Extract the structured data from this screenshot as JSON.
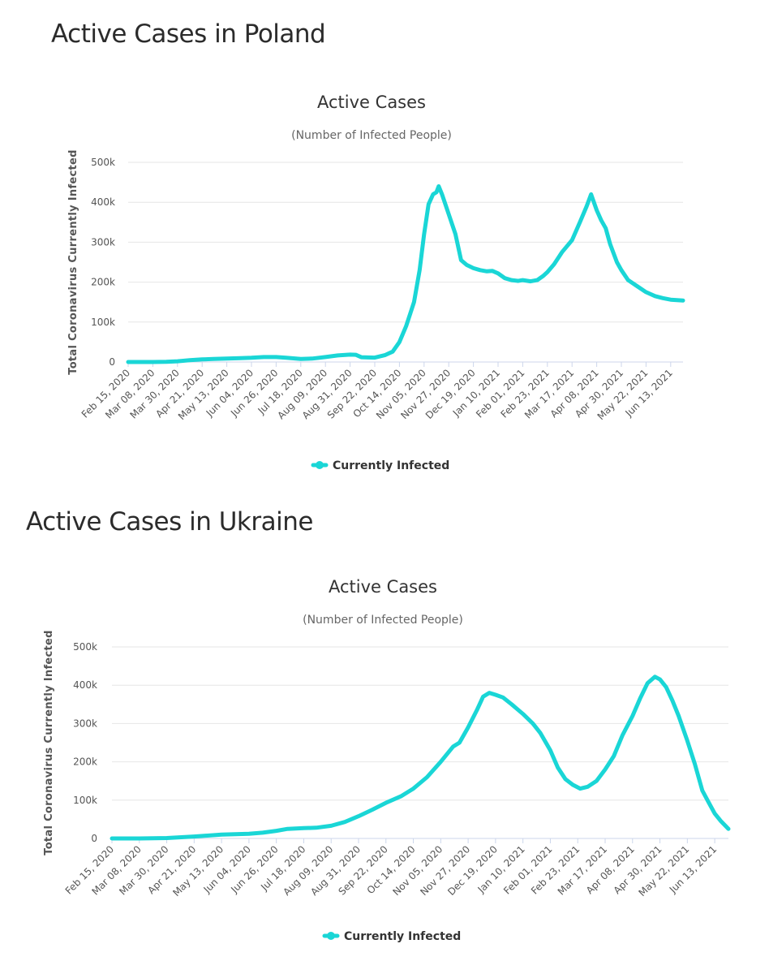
{
  "sections": [
    {
      "heading": "Active Cases in Poland",
      "chart_data": {
        "type": "line",
        "title": "Active Cases",
        "subtitle": "(Number of Infected People)",
        "ylabel": "Total Coronavirus Currently Infected",
        "ylim": [
          0,
          500000
        ],
        "y_ticks": [
          "0",
          "100k",
          "200k",
          "300k",
          "400k",
          "500k"
        ],
        "x_ticks": [
          "Feb 15, 2020",
          "Mar 08, 2020",
          "Mar 30, 2020",
          "Apr 21, 2020",
          "May 13, 2020",
          "Jun 04, 2020",
          "Jun 26, 2020",
          "Jul 18, 2020",
          "Aug 09, 2020",
          "Aug 31, 2020",
          "Sep 22, 2020",
          "Oct 14, 2020",
          "Nov 05, 2020",
          "Nov 27, 2020",
          "Dec 19, 2020",
          "Jan 10, 2021",
          "Feb 01, 2021",
          "Feb 23, 2021",
          "Mar 17, 2021",
          "Apr 08, 2021",
          "Apr 30, 2021",
          "May 22, 2021",
          "Jun 13, 2021"
        ],
        "x_range": [
          "2020-02-15",
          "2021-06-24"
        ],
        "legend": "bottom",
        "color": "#1ad6d6",
        "series": [
          {
            "name": "Currently Infected",
            "points": [
              [
                "2020-02-15",
                0
              ],
              [
                "2020-03-08",
                50
              ],
              [
                "2020-03-20",
                400
              ],
              [
                "2020-03-30",
                1800
              ],
              [
                "2020-04-10",
                4500
              ],
              [
                "2020-04-21",
                6500
              ],
              [
                "2020-05-01",
                7500
              ],
              [
                "2020-05-13",
                8500
              ],
              [
                "2020-05-25",
                9500
              ],
              [
                "2020-06-04",
                10500
              ],
              [
                "2020-06-15",
                12500
              ],
              [
                "2020-06-26",
                12500
              ],
              [
                "2020-07-05",
                10500
              ],
              [
                "2020-07-18",
                7500
              ],
              [
                "2020-07-28",
                8500
              ],
              [
                "2020-08-09",
                12500
              ],
              [
                "2020-08-20",
                16500
              ],
              [
                "2020-08-31",
                18500
              ],
              [
                "2020-09-05",
                18000
              ],
              [
                "2020-09-10",
                12000
              ],
              [
                "2020-09-22",
                11000
              ],
              [
                "2020-10-01",
                17000
              ],
              [
                "2020-10-08",
                26000
              ],
              [
                "2020-10-14",
                50000
              ],
              [
                "2020-10-20",
                90000
              ],
              [
                "2020-10-27",
                150000
              ],
              [
                "2020-11-01",
                230000
              ],
              [
                "2020-11-05",
                320000
              ],
              [
                "2020-11-09",
                395000
              ],
              [
                "2020-11-13",
                420000
              ],
              [
                "2020-11-16",
                425000
              ],
              [
                "2020-11-18",
                440000
              ],
              [
                "2020-11-21",
                420000
              ],
              [
                "2020-11-27",
                370000
              ],
              [
                "2020-12-03",
                320000
              ],
              [
                "2020-12-08",
                255000
              ],
              [
                "2020-12-13",
                243000
              ],
              [
                "2020-12-19",
                235000
              ],
              [
                "2020-12-25",
                230000
              ],
              [
                "2020-12-31",
                227000
              ],
              [
                "2021-01-05",
                228000
              ],
              [
                "2021-01-10",
                222000
              ],
              [
                "2021-01-16",
                210000
              ],
              [
                "2021-01-22",
                205000
              ],
              [
                "2021-01-28",
                203000
              ],
              [
                "2021-02-01",
                205000
              ],
              [
                "2021-02-08",
                202000
              ],
              [
                "2021-02-14",
                205000
              ],
              [
                "2021-02-19",
                215000
              ],
              [
                "2021-02-23",
                225000
              ],
              [
                "2021-03-01",
                245000
              ],
              [
                "2021-03-08",
                275000
              ],
              [
                "2021-03-17",
                305000
              ],
              [
                "2021-03-24",
                350000
              ],
              [
                "2021-03-30",
                390000
              ],
              [
                "2021-04-03",
                420000
              ],
              [
                "2021-04-08",
                380000
              ],
              [
                "2021-04-12",
                355000
              ],
              [
                "2021-04-16",
                335000
              ],
              [
                "2021-04-20",
                295000
              ],
              [
                "2021-04-26",
                250000
              ],
              [
                "2021-04-30",
                230000
              ],
              [
                "2021-05-06",
                205000
              ],
              [
                "2021-05-14",
                190000
              ],
              [
                "2021-05-22",
                175000
              ],
              [
                "2021-05-30",
                165000
              ],
              [
                "2021-06-06",
                160000
              ],
              [
                "2021-06-13",
                156000
              ],
              [
                "2021-06-24",
                154000
              ]
            ]
          }
        ]
      }
    },
    {
      "heading": "Active Cases in Ukraine",
      "chart_data": {
        "type": "line",
        "title": "Active Cases",
        "subtitle": "(Number of Infected People)",
        "ylabel": "Total Coronavirus Currently Infected",
        "ylim": [
          0,
          500000
        ],
        "y_ticks": [
          "0",
          "100k",
          "200k",
          "300k",
          "400k",
          "500k"
        ],
        "x_ticks": [
          "Feb 15, 2020",
          "Mar 08, 2020",
          "Mar 30, 2020",
          "Apr 21, 2020",
          "May 13, 2020",
          "Jun 04, 2020",
          "Jun 26, 2020",
          "Jul 18, 2020",
          "Aug 09, 2020",
          "Aug 31, 2020",
          "Sep 22, 2020",
          "Oct 14, 2020",
          "Nov 05, 2020",
          "Nov 27, 2020",
          "Dec 19, 2020",
          "Jan 10, 2021",
          "Feb 01, 2021",
          "Feb 23, 2021",
          "Mar 17, 2021",
          "Apr 08, 2021",
          "Apr 30, 2021",
          "May 22, 2021",
          "Jun 13, 2021"
        ],
        "x_range": [
          "2020-02-15",
          "2021-06-24"
        ],
        "legend": "bottom",
        "color": "#1ad6d6",
        "series": [
          {
            "name": "Currently Infected",
            "points": [
              [
                "2020-02-15",
                0
              ],
              [
                "2020-03-08",
                0
              ],
              [
                "2020-03-30",
                1000
              ],
              [
                "2020-04-21",
                5000
              ],
              [
                "2020-05-13",
                10000
              ],
              [
                "2020-06-04",
                12000
              ],
              [
                "2020-06-15",
                15000
              ],
              [
                "2020-06-26",
                20000
              ],
              [
                "2020-07-05",
                25000
              ],
              [
                "2020-07-18",
                27000
              ],
              [
                "2020-07-28",
                28000
              ],
              [
                "2020-08-09",
                33000
              ],
              [
                "2020-08-20",
                43000
              ],
              [
                "2020-08-31",
                58000
              ],
              [
                "2020-09-11",
                75000
              ],
              [
                "2020-09-22",
                93000
              ],
              [
                "2020-10-04",
                110000
              ],
              [
                "2020-10-14",
                130000
              ],
              [
                "2020-10-25",
                160000
              ],
              [
                "2020-11-05",
                200000
              ],
              [
                "2020-11-15",
                240000
              ],
              [
                "2020-11-20",
                250000
              ],
              [
                "2020-11-27",
                290000
              ],
              [
                "2020-12-04",
                335000
              ],
              [
                "2020-12-09",
                370000
              ],
              [
                "2020-12-14",
                380000
              ],
              [
                "2020-12-19",
                375000
              ],
              [
                "2020-12-25",
                368000
              ],
              [
                "2021-01-01",
                350000
              ],
              [
                "2021-01-10",
                325000
              ],
              [
                "2021-01-18",
                300000
              ],
              [
                "2021-01-24",
                275000
              ],
              [
                "2021-02-01",
                230000
              ],
              [
                "2021-02-07",
                185000
              ],
              [
                "2021-02-13",
                155000
              ],
              [
                "2021-02-19",
                140000
              ],
              [
                "2021-02-25",
                130000
              ],
              [
                "2021-03-03",
                135000
              ],
              [
                "2021-03-10",
                150000
              ],
              [
                "2021-03-17",
                180000
              ],
              [
                "2021-03-24",
                215000
              ],
              [
                "2021-03-31",
                270000
              ],
              [
                "2021-04-08",
                320000
              ],
              [
                "2021-04-14",
                365000
              ],
              [
                "2021-04-20",
                405000
              ],
              [
                "2021-04-26",
                422000
              ],
              [
                "2021-04-30",
                415000
              ],
              [
                "2021-05-05",
                395000
              ],
              [
                "2021-05-10",
                360000
              ],
              [
                "2021-05-15",
                320000
              ],
              [
                "2021-05-22",
                255000
              ],
              [
                "2021-05-28",
                195000
              ],
              [
                "2021-06-03",
                125000
              ],
              [
                "2021-06-08",
                95000
              ],
              [
                "2021-06-13",
                65000
              ],
              [
                "2021-06-18",
                45000
              ],
              [
                "2021-06-24",
                25000
              ]
            ]
          }
        ]
      }
    }
  ]
}
